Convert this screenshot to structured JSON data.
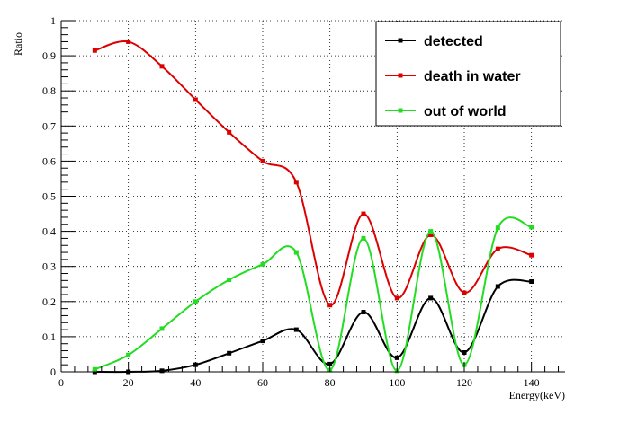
{
  "chart_data": {
    "type": "line",
    "xlabel": "Energy(keV)",
    "ylabel": "Ratio",
    "xlim": [
      0,
      150
    ],
    "ylim": [
      0,
      1
    ],
    "x_ticks": [
      0,
      20,
      40,
      60,
      80,
      100,
      120,
      140
    ],
    "y_ticks": [
      0,
      0.1,
      0.2,
      0.3,
      0.4,
      0.5,
      0.6,
      0.7,
      0.8,
      0.9,
      1
    ],
    "grid": true,
    "legend_position": "top-right",
    "series": [
      {
        "name": "detected",
        "color": "#000000",
        "x": [
          10,
          20,
          30,
          40,
          50,
          60,
          70,
          80,
          90,
          100,
          110,
          120,
          130,
          140
        ],
        "y": [
          0,
          0,
          0.003,
          0.02,
          0.053,
          0.088,
          0.12,
          0.022,
          0.17,
          0.04,
          0.21,
          0.055,
          0.243,
          0.257
        ]
      },
      {
        "name": "death in water",
        "color": "#dd0000",
        "x": [
          10,
          20,
          30,
          40,
          50,
          60,
          70,
          80,
          90,
          100,
          110,
          120,
          130,
          140
        ],
        "y": [
          0.915,
          0.94,
          0.87,
          0.775,
          0.682,
          0.6,
          0.54,
          0.19,
          0.45,
          0.21,
          0.39,
          0.225,
          0.35,
          0.332
        ]
      },
      {
        "name": "out of world",
        "color": "#22dd22",
        "x": [
          10,
          20,
          30,
          40,
          50,
          60,
          70,
          80,
          90,
          100,
          110,
          120,
          130,
          140
        ],
        "y": [
          0.007,
          0.048,
          0.123,
          0.2,
          0.262,
          0.306,
          0.34,
          0.005,
          0.38,
          0.003,
          0.4,
          0.02,
          0.41,
          0.412
        ]
      }
    ]
  }
}
